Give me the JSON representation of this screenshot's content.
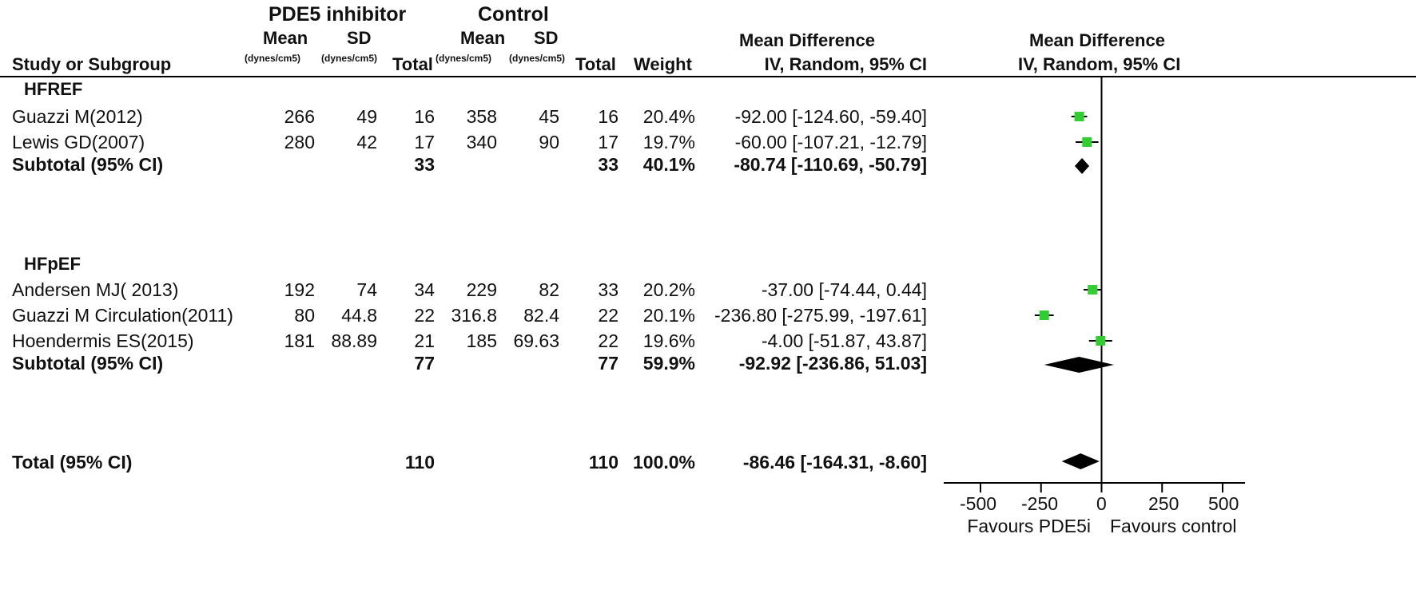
{
  "header": {
    "group_a": "PDE5 inhibitor",
    "group_b": "Control",
    "mean": "Mean",
    "sd": "SD",
    "unit": "(dynes/cm5)",
    "total": "Total",
    "weight": "Weight",
    "study_col": "Study or Subgroup",
    "md_title": "Mean Difference",
    "md_method": "IV, Random, 95% CI",
    "plot_title": "Mean Difference",
    "plot_method": "IV, Random, 95% CI"
  },
  "subgroups": [
    {
      "label": "HFREF",
      "studies": [
        {
          "name": "Guazzi M(2012)",
          "mean_a": "266",
          "sd_a": "49",
          "total_a": "16",
          "mean_b": "358",
          "sd_b": "45",
          "total_b": "16",
          "weight": "20.4%",
          "ci_text": "-92.00 [-124.60, -59.40]"
        },
        {
          "name": "Lewis GD(2007)",
          "mean_a": "280",
          "sd_a": "42",
          "total_a": "17",
          "mean_b": "340",
          "sd_b": "90",
          "total_b": "17",
          "weight": "19.7%",
          "ci_text": "-60.00 [-107.21, -12.79]"
        }
      ],
      "subtotal": {
        "name": "Subtotal (95% CI)",
        "total_a": "33",
        "total_b": "33",
        "weight": "40.1%",
        "ci_text": "-80.74 [-110.69, -50.79]"
      }
    },
    {
      "label": "HFpEF",
      "studies": [
        {
          "name": "Andersen MJ( 2013)",
          "mean_a": "192",
          "sd_a": "74",
          "total_a": "34",
          "mean_b": "229",
          "sd_b": "82",
          "total_b": "33",
          "weight": "20.2%",
          "ci_text": "-37.00 [-74.44, 0.44]"
        },
        {
          "name": "Guazzi M Circulation(2011)",
          "mean_a": "80",
          "sd_a": "44.8",
          "total_a": "22",
          "mean_b": "316.8",
          "sd_b": "82.4",
          "total_b": "22",
          "weight": "20.1%",
          "ci_text": "-236.80 [-275.99, -197.61]"
        },
        {
          "name": "Hoendermis ES(2015)",
          "mean_a": "181",
          "sd_a": "88.89",
          "total_a": "21",
          "mean_b": "185",
          "sd_b": "69.63",
          "total_b": "22",
          "weight": "19.6%",
          "ci_text": "-4.00 [-51.87, 43.87]"
        }
      ],
      "subtotal": {
        "name": "Subtotal (95% CI)",
        "total_a": "77",
        "total_b": "77",
        "weight": "59.9%",
        "ci_text": "-92.92 [-236.86, 51.03]"
      }
    }
  ],
  "total": {
    "name": "Total (95% CI)",
    "total_a": "110",
    "total_b": "110",
    "weight": "100.0%",
    "ci_text": "-86.46 [-164.31, -8.60]"
  },
  "axis": {
    "ticks": [
      "-500",
      "-250",
      "0",
      "250",
      "500"
    ],
    "favours_left": "Favours PDE5i",
    "favours_right": "Favours control"
  },
  "chart_data": {
    "type": "forest",
    "xlim": [
      -500,
      500
    ],
    "xticks": [
      -500,
      -250,
      0,
      250,
      500
    ],
    "colors": {
      "study_square": "#33cc33",
      "diamond": "#000000"
    },
    "studies": [
      {
        "name": "Guazzi M(2012)",
        "md": -92.0,
        "lo": -124.6,
        "hi": -59.4,
        "weight": 20.4
      },
      {
        "name": "Lewis GD(2007)",
        "md": -60.0,
        "lo": -107.21,
        "hi": -12.79,
        "weight": 19.7
      },
      {
        "name": "Andersen MJ( 2013)",
        "md": -37.0,
        "lo": -74.44,
        "hi": 0.44,
        "weight": 20.2
      },
      {
        "name": "Guazzi M Circulation(2011)",
        "md": -236.8,
        "lo": -275.99,
        "hi": -197.61,
        "weight": 20.1
      },
      {
        "name": "Hoendermis ES(2015)",
        "md": -4.0,
        "lo": -51.87,
        "hi": 43.87,
        "weight": 19.6
      }
    ],
    "summaries": [
      {
        "name": "Subtotal HFREF",
        "md": -80.74,
        "lo": -110.69,
        "hi": -50.79
      },
      {
        "name": "Subtotal HFpEF",
        "md": -92.92,
        "lo": -236.86,
        "hi": 51.03
      },
      {
        "name": "Total",
        "md": -86.46,
        "lo": -164.31,
        "hi": -8.6
      }
    ]
  }
}
